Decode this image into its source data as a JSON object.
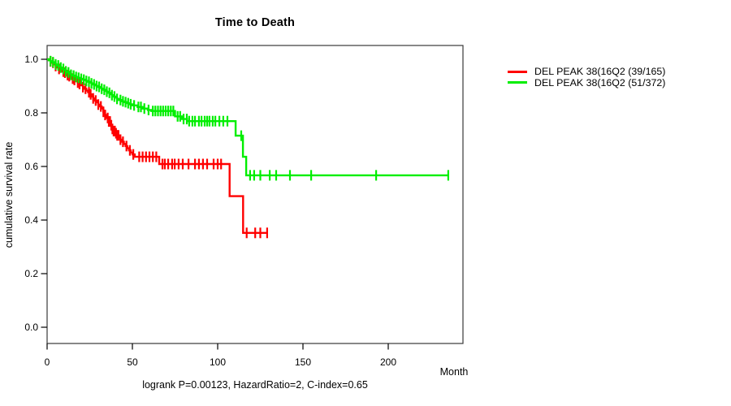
{
  "chart_data": {
    "type": "line",
    "subtype": "kaplan-meier-step-curves",
    "title": "Time to Death",
    "xlabel": "Month",
    "ylabel": "cumulative survival rate",
    "footnote": "logrank P=0.00123, HazardRatio=2, C-index=0.65",
    "xlim": [
      0,
      243
    ],
    "ylim": [
      0,
      1.0
    ],
    "grid": false,
    "legend_position": "right",
    "x_ticks": [
      0,
      50,
      100,
      150,
      200
    ],
    "x_tick_labels": [
      "0",
      "50",
      "100",
      "150",
      "200"
    ],
    "y_ticks": [
      0.0,
      0.2,
      0.4,
      0.6,
      0.8,
      1.0
    ],
    "y_tick_labels": [
      "0.0",
      "0.2",
      "0.4",
      "0.6",
      "0.8",
      "1.0"
    ],
    "series": [
      {
        "name": "DEL PEAK 38(16Q2 (39/165)",
        "color": "#FF0000",
        "events_over_n": "39/165",
        "end_month": 129.3,
        "steps": [
          [
            0,
            1.0
          ],
          [
            1,
            0.996
          ],
          [
            2,
            0.992
          ],
          [
            3,
            0.987
          ],
          [
            4,
            0.981
          ],
          [
            5,
            0.975
          ],
          [
            6,
            0.969
          ],
          [
            7,
            0.964
          ],
          [
            8,
            0.959
          ],
          [
            9,
            0.954
          ],
          [
            10,
            0.95
          ],
          [
            11,
            0.945
          ],
          [
            12,
            0.941
          ],
          [
            13,
            0.937
          ],
          [
            14,
            0.933
          ],
          [
            15,
            0.928
          ],
          [
            16,
            0.923
          ],
          [
            17,
            0.918
          ],
          [
            18,
            0.913
          ],
          [
            19,
            0.908
          ],
          [
            20,
            0.903
          ],
          [
            21,
            0.896
          ],
          [
            22,
            0.89
          ],
          [
            23,
            0.883
          ],
          [
            24,
            0.877
          ],
          [
            25,
            0.869
          ],
          [
            26,
            0.861
          ],
          [
            27,
            0.854
          ],
          [
            28,
            0.846
          ],
          [
            29,
            0.839
          ],
          [
            30,
            0.831
          ],
          [
            31,
            0.824
          ],
          [
            32,
            0.816
          ],
          [
            33,
            0.804
          ],
          [
            34,
            0.792
          ],
          [
            35,
            0.781
          ],
          [
            36,
            0.768
          ],
          [
            37,
            0.754
          ],
          [
            38,
            0.74
          ],
          [
            39,
            0.732
          ],
          [
            40,
            0.724
          ],
          [
            41,
            0.716
          ],
          [
            42,
            0.708
          ],
          [
            43,
            0.7
          ],
          [
            44,
            0.692
          ],
          [
            45,
            0.684
          ],
          [
            46,
            0.676
          ],
          [
            47,
            0.668
          ],
          [
            48,
            0.66
          ],
          [
            49,
            0.652
          ],
          [
            50,
            0.645
          ],
          [
            51.4,
            0.636
          ],
          [
            65.7,
            0.609
          ],
          [
            107,
            0.489
          ],
          [
            114.9,
            0.352
          ]
        ],
        "censor_months": [
          2,
          3.5,
          5,
          7,
          9.5,
          10.5,
          12,
          13,
          15,
          16,
          18,
          19,
          21,
          22.5,
          24.5,
          25.5,
          27,
          28.5,
          30,
          31.5,
          33,
          34,
          35.5,
          36.2,
          36.9,
          37.6,
          38.3,
          39,
          39.7,
          40.4,
          41.1,
          41.8,
          43,
          44.5,
          46.5,
          48.5,
          50.5,
          54,
          56,
          58,
          60,
          62,
          64,
          67.6,
          69,
          71,
          73.3,
          74.8,
          77.1,
          79.5,
          82.9,
          86.7,
          89,
          91.4,
          93.8,
          97.6,
          100,
          102,
          117,
          122,
          125,
          129
        ]
      },
      {
        "name": "DEL PEAK 38(16Q2 (51/372)",
        "color": "#00EE00",
        "events_over_n": "51/372",
        "end_month": 235.2,
        "steps": [
          [
            0,
            1.0
          ],
          [
            1,
            0.996
          ],
          [
            2,
            0.993
          ],
          [
            3,
            0.989
          ],
          [
            4,
            0.985
          ],
          [
            5,
            0.981
          ],
          [
            6,
            0.977
          ],
          [
            7,
            0.973
          ],
          [
            8,
            0.969
          ],
          [
            9,
            0.964
          ],
          [
            10,
            0.96
          ],
          [
            11,
            0.955
          ],
          [
            12,
            0.951
          ],
          [
            13,
            0.946
          ],
          [
            14,
            0.942
          ],
          [
            15,
            0.939
          ],
          [
            16,
            0.936
          ],
          [
            17,
            0.934
          ],
          [
            18,
            0.931
          ],
          [
            19,
            0.929
          ],
          [
            20,
            0.927
          ],
          [
            21,
            0.924
          ],
          [
            22,
            0.922
          ],
          [
            23,
            0.919
          ],
          [
            24,
            0.916
          ],
          [
            25,
            0.913
          ],
          [
            26,
            0.91
          ],
          [
            27,
            0.906
          ],
          [
            28,
            0.903
          ],
          [
            29,
            0.9
          ],
          [
            30,
            0.897
          ],
          [
            31,
            0.893
          ],
          [
            32,
            0.89
          ],
          [
            33,
            0.886
          ],
          [
            34,
            0.882
          ],
          [
            35,
            0.879
          ],
          [
            36,
            0.875
          ],
          [
            37,
            0.87
          ],
          [
            38,
            0.866
          ],
          [
            39,
            0.861
          ],
          [
            40,
            0.857
          ],
          [
            41,
            0.852
          ],
          [
            42,
            0.848
          ],
          [
            44,
            0.843
          ],
          [
            45,
            0.84
          ],
          [
            47,
            0.836
          ],
          [
            48,
            0.832
          ],
          [
            50,
            0.828
          ],
          [
            53,
            0.822
          ],
          [
            56,
            0.816
          ],
          [
            59,
            0.811
          ],
          [
            61,
            0.807
          ],
          [
            75,
            0.787
          ],
          [
            79,
            0.777
          ],
          [
            82,
            0.769
          ],
          [
            110.5,
            0.715
          ],
          [
            114.8,
            0.636
          ],
          [
            116.7,
            0.567
          ]
        ],
        "censor_months": [
          2,
          3.5,
          5,
          6.5,
          8,
          9.5,
          11,
          12.5,
          14,
          15.5,
          17,
          18.5,
          20,
          21.5,
          23,
          24.5,
          26,
          27.5,
          29,
          30.5,
          32,
          33.5,
          35,
          36.5,
          38,
          39.5,
          41,
          43,
          44.5,
          46,
          47.5,
          49,
          51,
          53.5,
          55,
          57,
          59.5,
          62,
          63.5,
          65,
          66.5,
          68,
          69.5,
          71,
          72.5,
          74,
          76.5,
          78,
          80,
          81.9,
          83.3,
          85.2,
          86.7,
          89,
          90.5,
          92.4,
          93.8,
          95.2,
          97.1,
          98.6,
          101,
          103.3,
          105.7,
          113.8,
          119,
          121.4,
          125,
          130.5,
          134.3,
          142.4,
          154.8,
          192.9,
          235.2
        ]
      }
    ]
  }
}
